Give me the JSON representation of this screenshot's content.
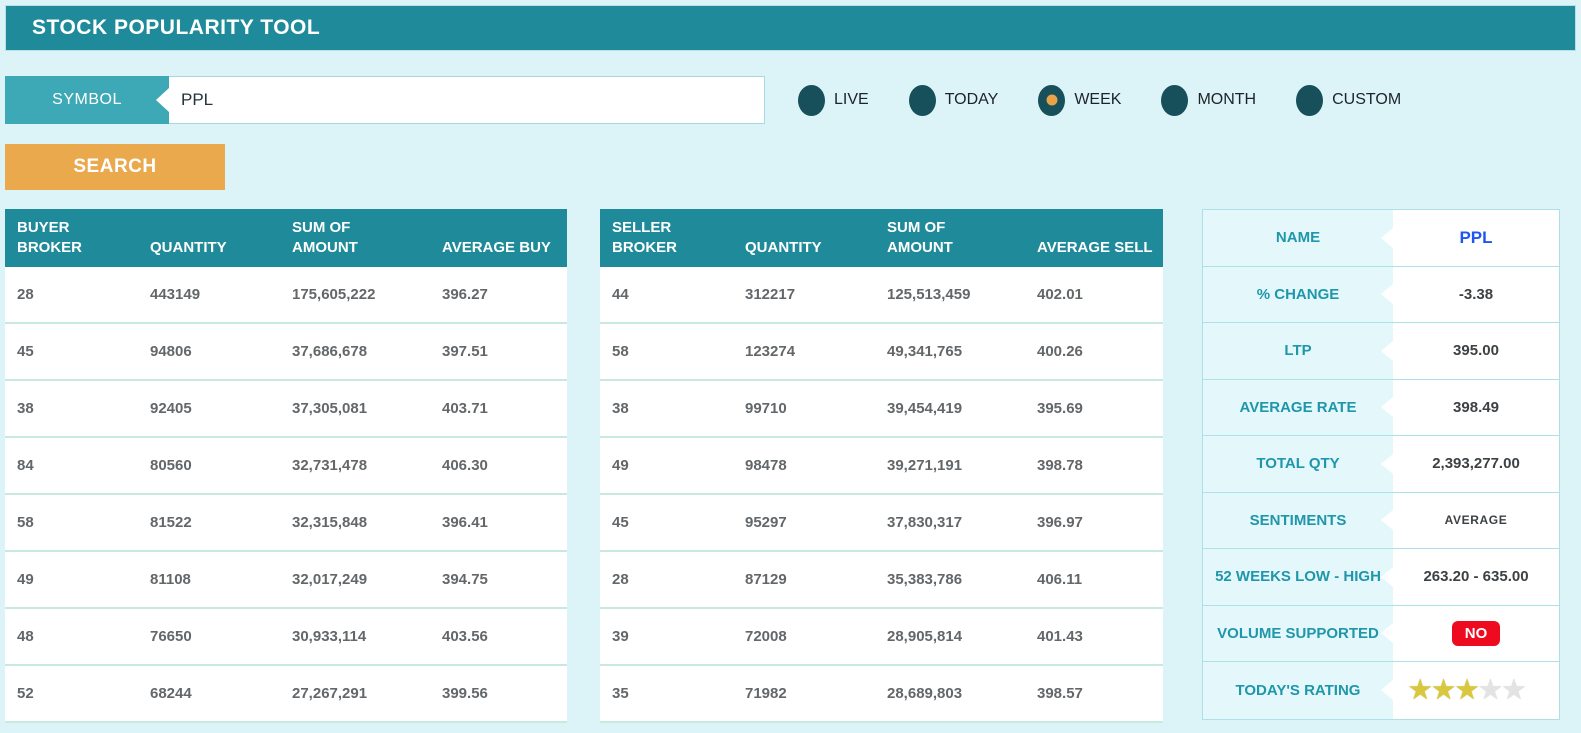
{
  "header": {
    "title": "STOCK POPULARITY TOOL"
  },
  "search_bar": {
    "symbol_label": "SYMBOL",
    "symbol_value": "PPL",
    "search_button": "SEARCH"
  },
  "periods": [
    {
      "label": "LIVE",
      "selected": false
    },
    {
      "label": "TODAY",
      "selected": false
    },
    {
      "label": "WEEK",
      "selected": true
    },
    {
      "label": "MONTH",
      "selected": false
    },
    {
      "label": "CUSTOM",
      "selected": false
    }
  ],
  "buyer_table": {
    "headers": [
      "BUYER BROKER",
      "QUANTITY",
      "SUM OF AMOUNT",
      "AVERAGE BUY"
    ],
    "rows": [
      [
        "28",
        "443149",
        "175,605,222",
        "396.27"
      ],
      [
        "45",
        "94806",
        "37,686,678",
        "397.51"
      ],
      [
        "38",
        "92405",
        "37,305,081",
        "403.71"
      ],
      [
        "84",
        "80560",
        "32,731,478",
        "406.30"
      ],
      [
        "58",
        "81522",
        "32,315,848",
        "396.41"
      ],
      [
        "49",
        "81108",
        "32,017,249",
        "394.75"
      ],
      [
        "48",
        "76650",
        "30,933,114",
        "403.56"
      ],
      [
        "52",
        "68244",
        "27,267,291",
        "399.56"
      ]
    ]
  },
  "seller_table": {
    "headers": [
      "SELLER BROKER",
      "QUANTITY",
      "SUM OF AMOUNT",
      "AVERAGE SELL"
    ],
    "rows": [
      [
        "44",
        "312217",
        "125,513,459",
        "402.01"
      ],
      [
        "58",
        "123274",
        "49,341,765",
        "400.26"
      ],
      [
        "38",
        "99710",
        "39,454,419",
        "395.69"
      ],
      [
        "49",
        "98478",
        "39,271,191",
        "398.78"
      ],
      [
        "45",
        "95297",
        "37,830,317",
        "396.97"
      ],
      [
        "28",
        "87129",
        "35,383,786",
        "406.11"
      ],
      [
        "39",
        "72008",
        "28,905,814",
        "401.43"
      ],
      [
        "35",
        "71982",
        "28,689,803",
        "398.57"
      ]
    ]
  },
  "summary_panel": {
    "rows": [
      {
        "label": "NAME",
        "value": "PPL",
        "style": "brand"
      },
      {
        "label": "% CHANGE",
        "value": "-3.38",
        "style": "default"
      },
      {
        "label": "LTP",
        "value": "395.00",
        "style": "default"
      },
      {
        "label": "AVERAGE RATE",
        "value": "398.49",
        "style": "default"
      },
      {
        "label": "TOTAL QTY",
        "value": "2,393,277.00",
        "style": "default"
      },
      {
        "label": "SENTIMENTS",
        "value": "AVERAGE",
        "style": "small"
      },
      {
        "label": "52 WEEKS LOW - HIGH",
        "value": "263.20 - 635.00",
        "style": "default"
      },
      {
        "label": "VOLUME SUPPORTED",
        "value": "NO",
        "style": "badge"
      },
      {
        "label": "TODAY'S RATING",
        "value": "",
        "style": "stars",
        "stars_filled": 3,
        "stars_total": 5
      }
    ]
  },
  "colors": {
    "accent_teal": "#1f8a99",
    "label_teal": "#3da9b6",
    "button_orange": "#eba94e",
    "radio_dark_teal": "#17505a",
    "radio_selected_orange": "#e8a24a",
    "badge_red": "#ee0b20",
    "star_gold": "#d9c83e",
    "brand_blue": "#1e56f0",
    "page_background": "#dcf3f7"
  }
}
